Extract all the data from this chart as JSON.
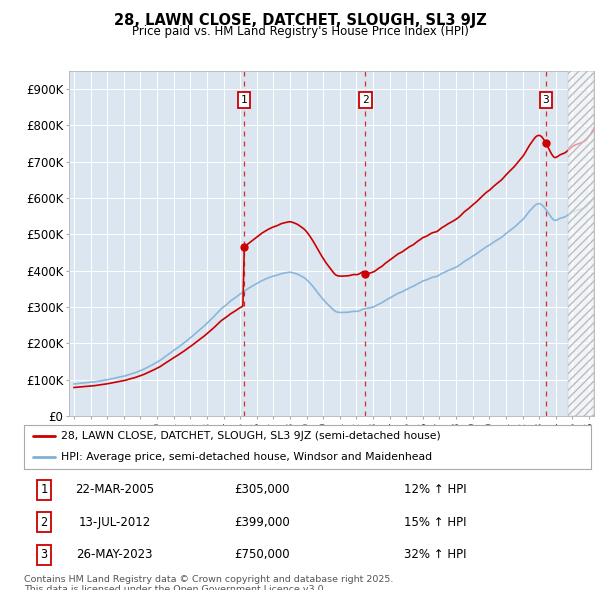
{
  "title": "28, LAWN CLOSE, DATCHET, SLOUGH, SL3 9JZ",
  "subtitle": "Price paid vs. HM Land Registry's House Price Index (HPI)",
  "ylim": [
    0,
    950000
  ],
  "xlim_start": 1994.7,
  "xlim_end": 2026.3,
  "yticks": [
    0,
    100000,
    200000,
    300000,
    400000,
    500000,
    600000,
    700000,
    800000,
    900000
  ],
  "ytick_labels": [
    "£0",
    "£100K",
    "£200K",
    "£300K",
    "£400K",
    "£500K",
    "£600K",
    "£700K",
    "£800K",
    "£900K"
  ],
  "background_color": "#ffffff",
  "plot_bg_color": "#dce6f1",
  "grid_color": "#ffffff",
  "sale_color": "#cc0000",
  "hpi_color": "#7fb2d8",
  "sale_label": "28, LAWN CLOSE, DATCHET, SLOUGH, SL3 9JZ (semi-detached house)",
  "hpi_label": "HPI: Average price, semi-detached house, Windsor and Maidenhead",
  "transactions": [
    {
      "num": 1,
      "date": "22-MAR-2005",
      "price": 305000,
      "pct": "12%",
      "x": 2005.22
    },
    {
      "num": 2,
      "date": "13-JUL-2012",
      "price": 399000,
      "pct": "15%",
      "x": 2012.54
    },
    {
      "num": 3,
      "date": "26-MAY-2023",
      "price": 750000,
      "pct": "32%",
      "x": 2023.4
    }
  ],
  "footnote": "Contains HM Land Registry data © Crown copyright and database right 2025.\nThis data is licensed under the Open Government Licence v3.0.",
  "hatch_start": 2024.75,
  "hpi_y_at_sale1": 272000,
  "hpi_y_at_sale2": 347000,
  "hpi_y_at_sale3": 568000,
  "sale1_price": 305000,
  "sale2_price": 399000,
  "sale3_price": 750000,
  "ratio1_to_hpi": 1.1213,
  "ratio2_to_hpi": 1.1499,
  "ratio3_to_hpi": 1.3204
}
